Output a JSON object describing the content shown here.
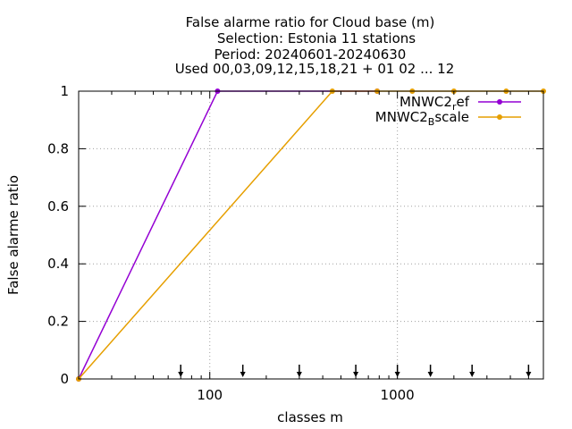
{
  "chart_data": {
    "type": "line",
    "title_lines": [
      "False alarme ratio  for Cloud base (m)",
      "Selection: Estonia      11 stations",
      "Period: 20240601-20240630",
      "Used 00,03,09,12,15,18,21 + 01 02 ... 12"
    ],
    "xlabel": "classes m",
    "ylabel": "False alarme ratio",
    "x_scale": "log",
    "xlim": [
      20,
      6000
    ],
    "ylim": [
      0,
      1
    ],
    "x_ticks": [
      {
        "value": 100,
        "label": "100"
      },
      {
        "value": 1000,
        "label": "1000"
      }
    ],
    "y_ticks": [
      {
        "value": 0,
        "label": "0"
      },
      {
        "value": 0.2,
        "label": "0.2"
      },
      {
        "value": 0.4,
        "label": "0.4"
      },
      {
        "value": 0.6,
        "label": "0.6"
      },
      {
        "value": 0.8,
        "label": "0.8"
      },
      {
        "value": 1,
        "label": "1"
      }
    ],
    "grid": true,
    "legend_position": "top-right",
    "series": [
      {
        "name_base": "MNWC2",
        "name_sub": "r",
        "name_rest": "ef",
        "color": "#9400d3",
        "x": [
          20,
          110,
          780
        ],
        "y": [
          0,
          1,
          1
        ]
      },
      {
        "name_base": "MNWC2",
        "name_sub": "B",
        "name_rest": "scale",
        "color": "#e69f00",
        "x": [
          20,
          450,
          780,
          1200,
          2000,
          3800,
          6000
        ],
        "y": [
          0,
          1,
          1,
          1,
          1,
          1,
          1
        ]
      }
    ],
    "arrow_markers_x": [
      70,
      150,
      300,
      600,
      1000,
      1500,
      2500,
      5000
    ]
  }
}
